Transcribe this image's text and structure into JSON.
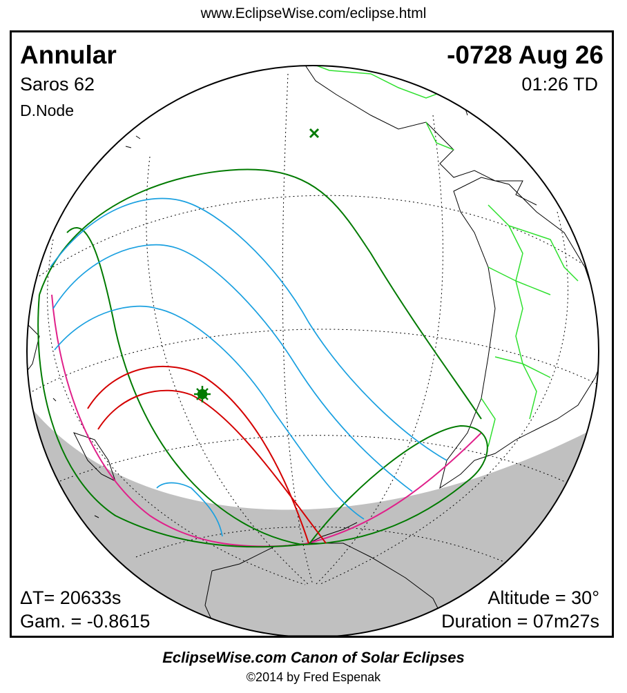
{
  "header": {
    "url": "www.EclipseWise.com/eclipse.html"
  },
  "eclipse": {
    "type": "Annular",
    "date": "-0728 Aug 26",
    "saros": "Saros  62",
    "time": "01:26 TD",
    "node": "D.Node",
    "delta_t": "ΔT=  20633s",
    "gamma": "Gam. = -0.8615",
    "altitude": "Altitude = 30°",
    "duration": "Duration = 07m27s"
  },
  "footer": {
    "title": "EclipseWise.com Canon of Solar Eclipses",
    "copyright": "©2014 by Fred Espenak"
  },
  "colors": {
    "penumbral_limits": "#007a00",
    "magnitude_curves": "#1aa0e0",
    "central_path": "#d40000",
    "rise_set_curve": "#e0208a",
    "borders": "#2ee02e",
    "night_shade": "#c0c0c0"
  },
  "markers": {
    "greatest_eclipse": "star-icon",
    "subsolar_point": "cross-icon"
  }
}
